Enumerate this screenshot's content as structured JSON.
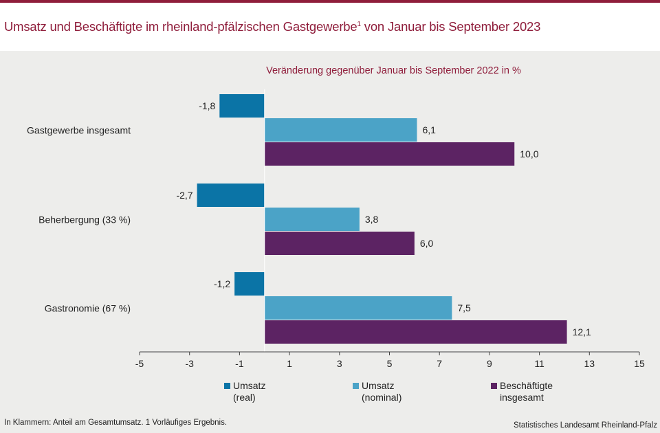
{
  "title": "Umsatz und Beschäftigte im rheinland-pfälzischen Gastgewerbe",
  "title_sup": "1",
  "title_suffix": " von Januar bis September 2023",
  "footnote": "In Klammern: Anteil am Gesamtumsatz. 1 Vorläufiges  Ergebnis.",
  "source": "Statistisches Landesamt Rheinland-Pfalz",
  "colors": {
    "accent": "#8f1d3b",
    "umsatz_real": "#0b74a6",
    "umsatz_nominal": "#4ba3c7",
    "beschaeftigte": "#5c2363",
    "panel_bg": "#ededeb"
  },
  "chart_data": {
    "type": "bar",
    "orientation": "horizontal",
    "title": "Veränderung gegenüber Januar bis September 2022 in %",
    "categories": [
      "Gastgewerbe insgesamt",
      "Beherbergung (33 %)",
      "Gastronomie (67 %)"
    ],
    "series": [
      {
        "name": "Umsatz (real)",
        "label_lines": [
          "Umsatz",
          "(real)"
        ],
        "color": "#0b74a6",
        "values": [
          -1.8,
          -2.7,
          -1.2
        ],
        "labels": [
          "-1,8",
          "-2,7",
          "-1,2"
        ]
      },
      {
        "name": "Umsatz (nominal)",
        "label_lines": [
          "Umsatz",
          "(nominal)"
        ],
        "color": "#4ba3c7",
        "values": [
          6.1,
          3.8,
          7.5
        ],
        "labels": [
          "6,1",
          "3,8",
          "7,5"
        ]
      },
      {
        "name": "Beschäftigte insgesamt",
        "label_lines": [
          "Beschäftigte",
          "insgesamt"
        ],
        "color": "#5c2363",
        "values": [
          10.0,
          6.0,
          12.1
        ],
        "labels": [
          "10,0",
          "6,0",
          "12,1"
        ]
      }
    ],
    "xlim": [
      -5,
      15
    ],
    "xticks": [
      -5,
      -3,
      -1,
      1,
      3,
      5,
      7,
      9,
      11,
      13,
      15
    ],
    "xtick_labels": [
      "-5",
      "-3",
      "-1",
      "1",
      "3",
      "5",
      "7",
      "9",
      "11",
      "13",
      "15"
    ],
    "legend_position": "bottom",
    "grid": false
  }
}
